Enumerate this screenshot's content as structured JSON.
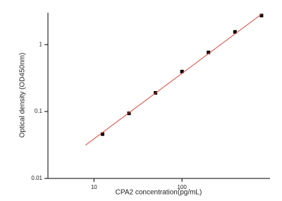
{
  "chart_data": {
    "type": "scatter",
    "x_label": "CPA2 concentration(pg/mL)",
    "y_label": "Optical density (OD450nm)",
    "x_scale": "log",
    "y_scale": "log",
    "xlim": [
      3,
      1000
    ],
    "ylim": [
      0.01,
      3
    ],
    "xticks": [
      10,
      100
    ],
    "yticks": [
      0.01,
      0.1,
      1
    ],
    "series": [
      {
        "style": "markers",
        "color": "#000000",
        "x": [
          12.5,
          25,
          50,
          100,
          200,
          400,
          800
        ],
        "values": [
          0.046,
          0.094,
          0.19,
          0.396,
          0.765,
          1.55,
          2.72
        ]
      },
      {
        "style": "line",
        "color": "#e0443c",
        "x": [
          8,
          800
        ],
        "values": [
          0.0314,
          2.85
        ]
      }
    ]
  }
}
